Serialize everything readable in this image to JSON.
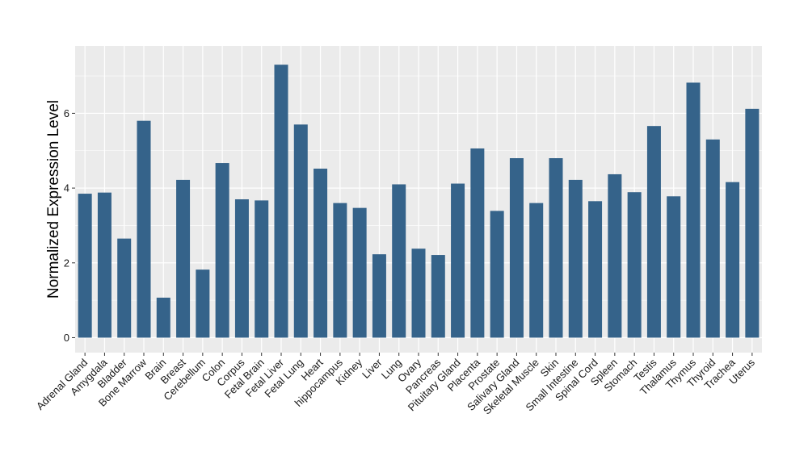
{
  "chart_data": {
    "type": "bar",
    "title": "",
    "xlabel": "",
    "ylabel": "Normalized Expression Level",
    "ylim": [
      -0.4,
      7.8
    ],
    "yticks": [
      0,
      2,
      4,
      6
    ],
    "grid": true,
    "colors": {
      "bar": "#35638a",
      "panel": "#ebebeb",
      "grid": "#ffffff",
      "axis_text": "#1a1a1a"
    },
    "categories": [
      "Adrenal Gland",
      "Amygdala",
      "Bladder",
      "Bone Marrow",
      "Brain",
      "Breast",
      "Cerebellum",
      "Colon",
      "Corpus",
      "Fetal Brain",
      "Fetal Liver",
      "Fetal Lung",
      "Heart",
      "hippocampus",
      "Kidney",
      "Liver",
      "Lung",
      "Ovary",
      "Pancreas",
      "Pituitary Gland",
      "Placenta",
      "Prostate",
      "Salivary Gland",
      "Skeletal Muscle",
      "Skin",
      "Small Intestine",
      "Spinal Cord",
      "Spleen",
      "Stomach",
      "Testis",
      "Thalamus",
      "Thymus",
      "Thyroid",
      "Trachea",
      "Uterus"
    ],
    "values": [
      3.85,
      3.88,
      2.65,
      5.8,
      1.07,
      4.22,
      1.82,
      4.67,
      3.7,
      3.67,
      7.3,
      5.7,
      4.52,
      3.6,
      3.47,
      2.23,
      4.1,
      2.38,
      2.21,
      4.12,
      5.06,
      3.39,
      4.8,
      3.6,
      4.8,
      4.22,
      3.65,
      4.37,
      3.89,
      5.66,
      3.78,
      6.82,
      5.3,
      4.16,
      6.12
    ]
  }
}
